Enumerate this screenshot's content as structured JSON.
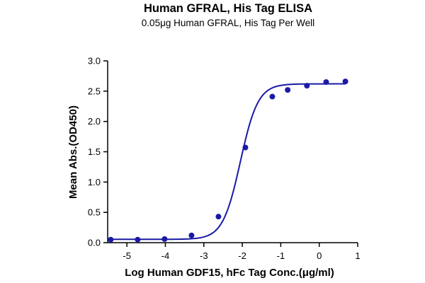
{
  "chart_data": {
    "type": "scatter",
    "title": "Human GFRAL, His Tag ELISA",
    "subtitle": "0.05μg Human GFRAL, His Tag Per Well",
    "xlabel": "Log Human GDF15, hFc Tag Conc.(μg/ml)",
    "ylabel": "Mean Abs.(OD450)",
    "xlim": [
      -5.5,
      1
    ],
    "ylim": [
      0,
      3
    ],
    "xticks": [
      -5,
      -4,
      -3,
      -2,
      -1,
      0,
      1
    ],
    "xtick_labels": [
      "-5",
      "-4",
      "-3",
      "-2",
      "-1",
      "0",
      "1"
    ],
    "yticks": [
      0,
      0.5,
      1,
      1.5,
      2,
      2.5,
      3
    ],
    "ytick_labels": [
      "0.0",
      "0.5",
      "1.0",
      "1.5",
      "2.0",
      "2.5",
      "3.0"
    ],
    "grid": false,
    "color": "#1a1aa6",
    "series": [
      {
        "x": [
          -5.42,
          -4.72,
          -4.02,
          -3.32,
          -2.62,
          -1.92,
          -1.22,
          -0.82,
          -0.32,
          0.18,
          0.68
        ],
        "y": [
          0.05,
          0.05,
          0.06,
          0.12,
          0.43,
          1.57,
          2.41,
          2.52,
          2.59,
          2.65,
          2.66
        ]
      }
    ],
    "fit": {
      "model": "4PL",
      "bottom": 0.055,
      "top": 2.62,
      "logEC50": -2.05,
      "hill": 1.9
    }
  }
}
